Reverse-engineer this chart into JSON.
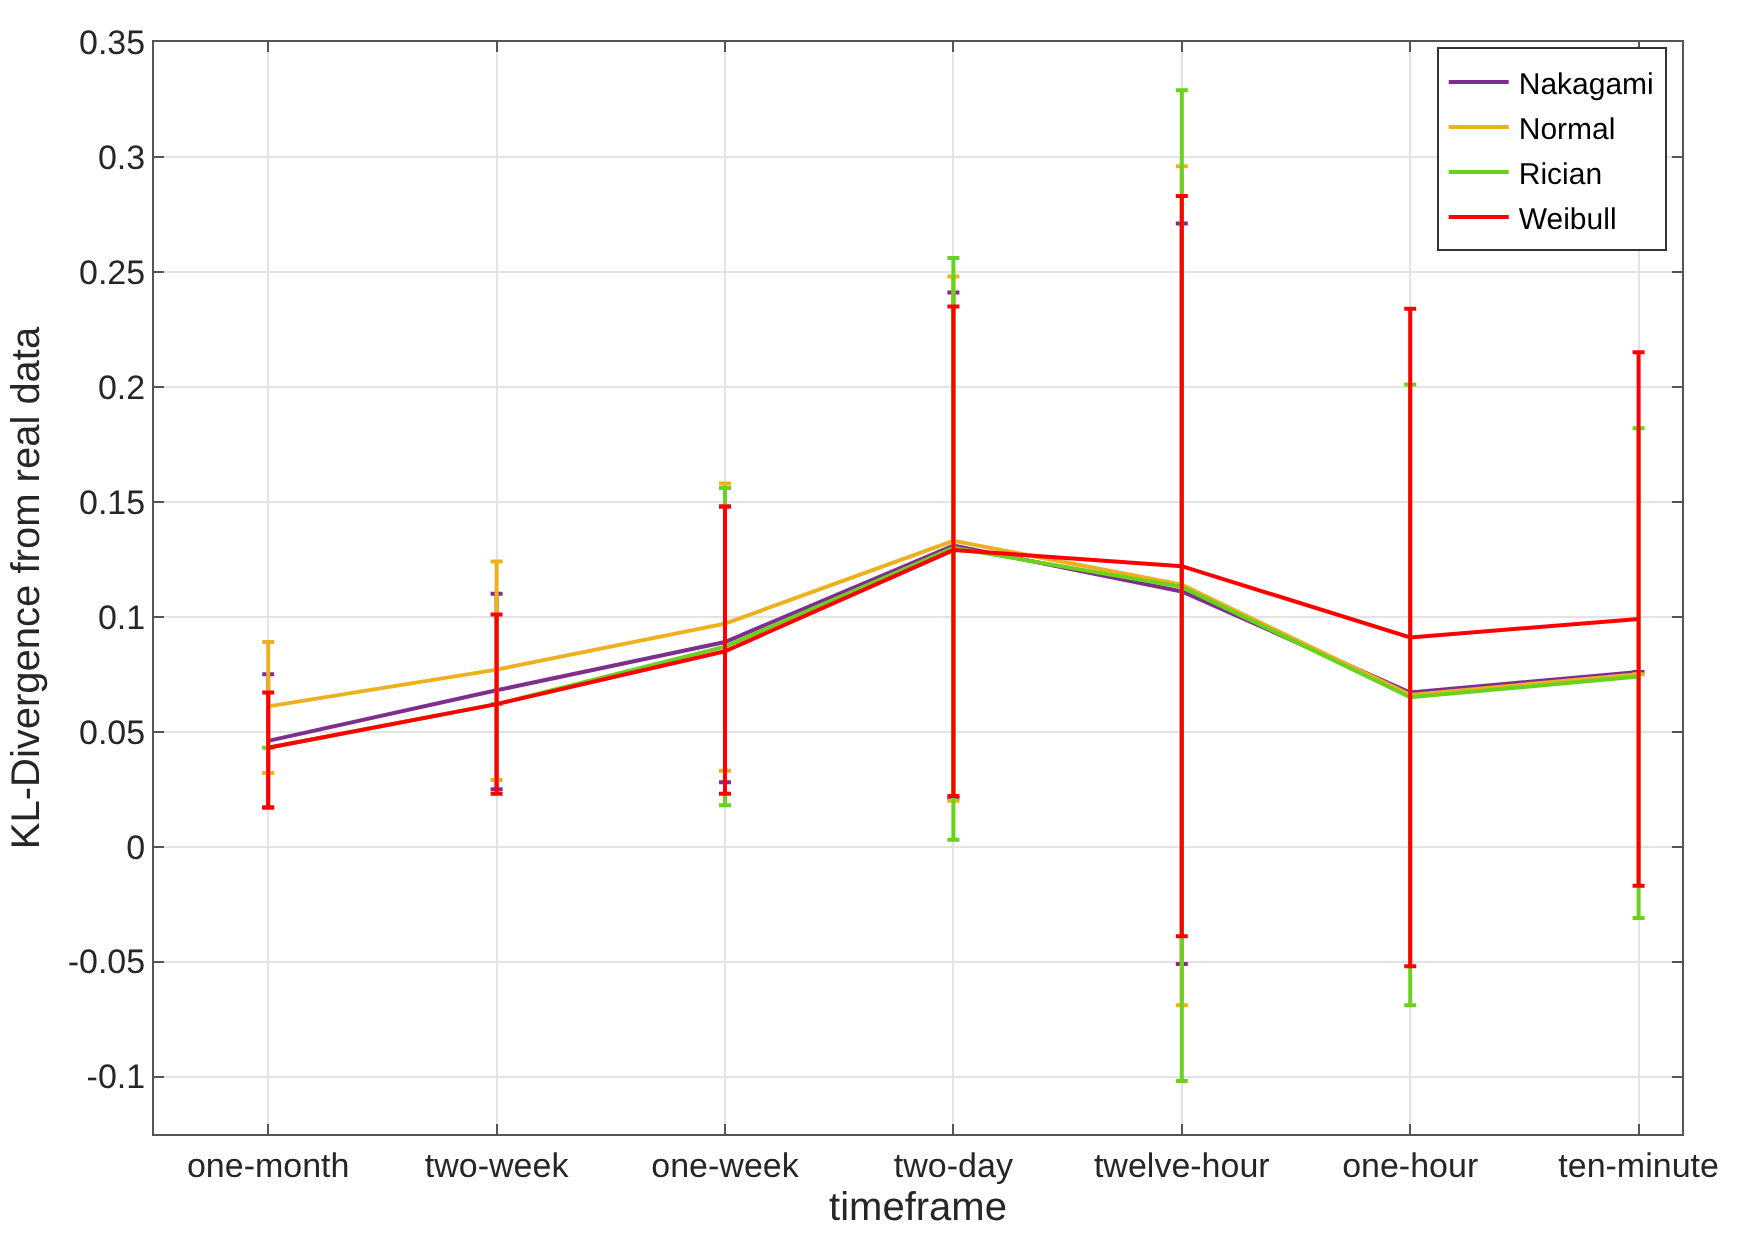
{
  "chart_data": {
    "type": "line",
    "xlabel": "timeframe",
    "ylabel": "KL-Divergence from real data",
    "categories": [
      "one-month",
      "two-week",
      "one-week",
      "two-day",
      "twelve-hour",
      "one-hour",
      "ten-minute"
    ],
    "ylim": [
      -0.125,
      0.35
    ],
    "yticks": [
      -0.1,
      -0.05,
      0,
      0.05,
      0.1,
      0.15,
      0.2,
      0.25,
      0.3,
      0.35
    ],
    "grid": true,
    "legend": "top right",
    "marker": "none",
    "line_style": "solid",
    "series": [
      {
        "name": "Nakagami",
        "color": "#7e2f8e",
        "values": [
          0.046,
          0.068,
          0.089,
          0.131,
          0.111,
          0.067,
          0.076
        ],
        "errors": [
          [
            0.017,
            0.075
          ],
          [
            0.025,
            0.11
          ],
          [
            0.028,
            0.148
          ],
          [
            0.021,
            0.241
          ],
          [
            -0.051,
            0.271
          ],
          null,
          null
        ]
      },
      {
        "name": "Normal",
        "color": "#edb120",
        "values": [
          0.061,
          0.077,
          0.097,
          0.133,
          0.114,
          0.066,
          0.075
        ],
        "errors": [
          [
            0.032,
            0.089
          ],
          [
            0.029,
            0.124
          ],
          [
            0.033,
            0.158
          ],
          [
            0.02,
            0.248
          ],
          [
            -0.069,
            0.296
          ],
          null,
          null
        ]
      },
      {
        "name": "Rician",
        "color": "#6ad11f",
        "values": [
          0.043,
          0.062,
          0.087,
          0.13,
          0.113,
          0.065,
          0.074
        ],
        "errors": [
          null,
          null,
          [
            0.018,
            0.156
          ],
          [
            0.003,
            0.256
          ],
          [
            -0.102,
            0.329
          ],
          [
            -0.069,
            0.201
          ],
          [
            -0.031,
            0.182
          ]
        ]
      },
      {
        "name": "Weibull",
        "color": "#ff0000",
        "values": [
          0.043,
          0.062,
          0.085,
          0.129,
          0.122,
          0.091,
          0.099
        ],
        "errors": [
          [
            0.017,
            0.067
          ],
          [
            0.023,
            0.101
          ],
          [
            0.023,
            0.148
          ],
          [
            0.022,
            0.235
          ],
          [
            -0.039,
            0.283
          ],
          [
            -0.052,
            0.234
          ],
          [
            -0.017,
            0.215
          ]
        ]
      }
    ]
  }
}
